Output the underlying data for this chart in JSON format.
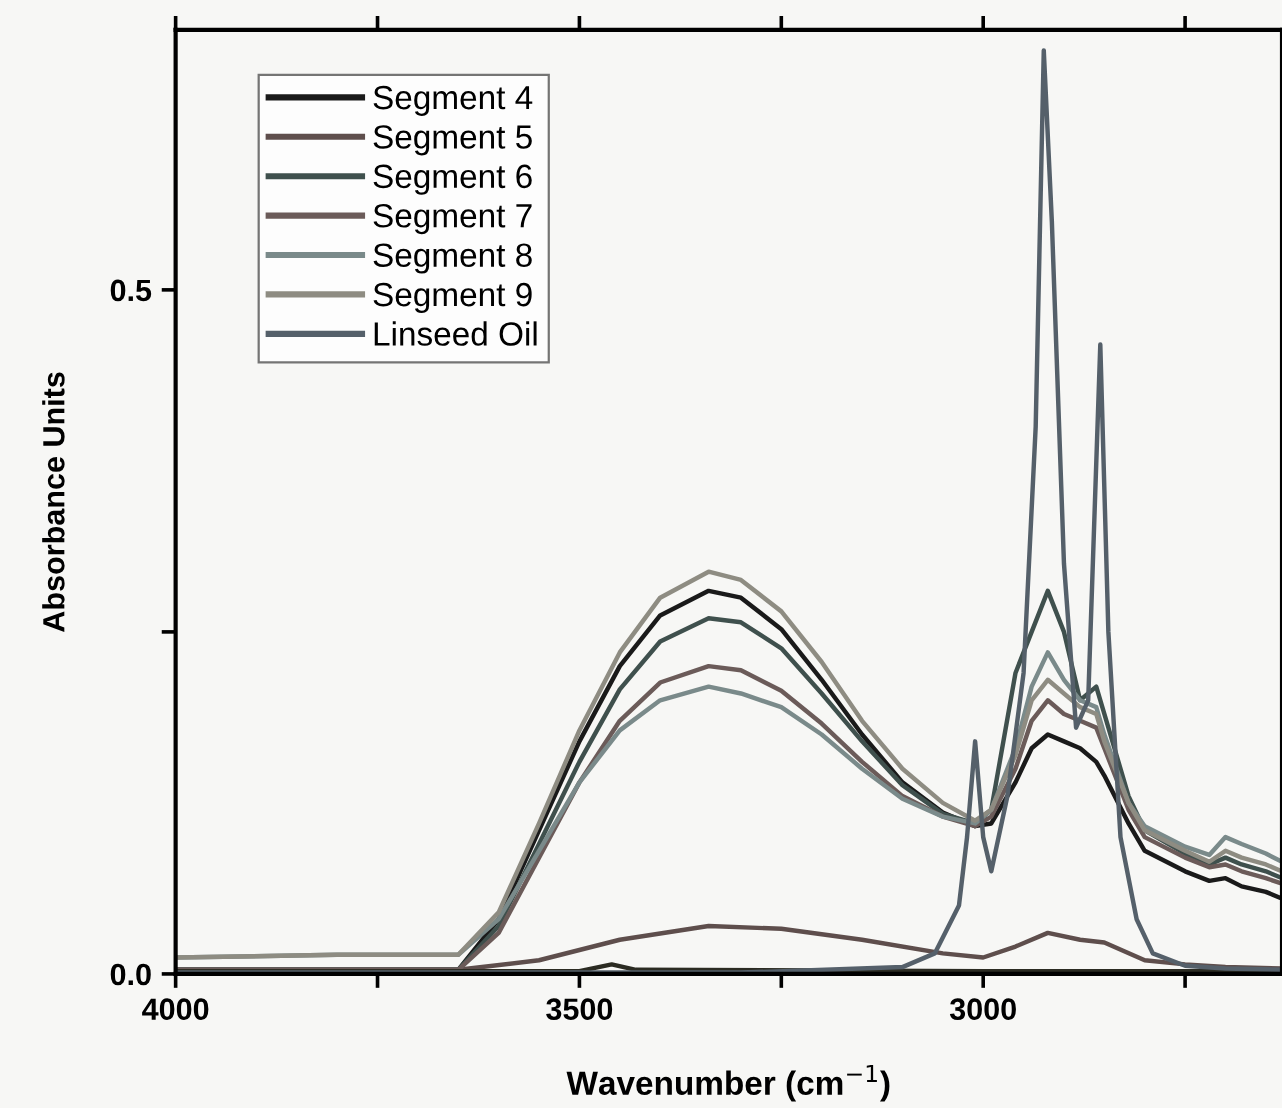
{
  "chart_data": {
    "type": "line",
    "xlabel": "Wavenumber (cm$^{−1}$)",
    "ylabel": "Absorbance Units",
    "xlim": [
      4000,
      2630
    ],
    "ylim": [
      0,
      0.69
    ],
    "xticks": [
      4000,
      {
        "value": 3750,
        "label": null
      },
      3500,
      {
        "value": 3250,
        "label": null
      },
      3000,
      {
        "value": 2750,
        "label": null
      }
    ],
    "yticks": [
      {
        "value": 0,
        "label": "0.0"
      },
      {
        "value": 0.25,
        "label": null
      },
      0.5
    ],
    "grid": false,
    "legend": "top left",
    "marker": "none",
    "line_style": "solid",
    "series": [
      {
        "name": "Segment 4",
        "color": "#1a1a1a",
        "x": [
          4000,
          3800,
          3650,
          3600,
          3550,
          3500,
          3450,
          3400,
          3340,
          3300,
          3250,
          3200,
          3150,
          3100,
          3050,
          3010,
          2990,
          2960,
          2940,
          2920,
          2900,
          2880,
          2860,
          2850,
          2820,
          2800,
          2750,
          2720,
          2700,
          2680,
          2650,
          2630
        ],
        "values": [
          0.003,
          0.003,
          0.003,
          0.04,
          0.105,
          0.17,
          0.225,
          0.262,
          0.28,
          0.275,
          0.252,
          0.215,
          0.175,
          0.14,
          0.118,
          0.108,
          0.11,
          0.14,
          0.165,
          0.175,
          0.17,
          0.165,
          0.155,
          0.145,
          0.11,
          0.09,
          0.075,
          0.068,
          0.07,
          0.064,
          0.06,
          0.055
        ]
      },
      {
        "name": "Segment 5",
        "color": "#5e4e4c",
        "x": [
          4000,
          3650,
          3550,
          3450,
          3340,
          3250,
          3150,
          3050,
          3000,
          2960,
          2920,
          2880,
          2850,
          2800,
          2750,
          2700,
          2630
        ],
        "values": [
          0.003,
          0.003,
          0.01,
          0.025,
          0.035,
          0.033,
          0.025,
          0.015,
          0.012,
          0.02,
          0.03,
          0.025,
          0.023,
          0.01,
          0.007,
          0.005,
          0.004
        ]
      },
      {
        "name": "Segment 6",
        "color": "#3f504d",
        "x": [
          4000,
          3800,
          3650,
          3600,
          3550,
          3500,
          3450,
          3400,
          3340,
          3300,
          3250,
          3200,
          3150,
          3100,
          3050,
          3010,
          2990,
          2960,
          2940,
          2920,
          2900,
          2880,
          2860,
          2850,
          2820,
          2800,
          2750,
          2720,
          2700,
          2680,
          2650,
          2630
        ],
        "values": [
          0.003,
          0.003,
          0.003,
          0.035,
          0.095,
          0.155,
          0.208,
          0.243,
          0.26,
          0.257,
          0.238,
          0.205,
          0.17,
          0.138,
          0.117,
          0.11,
          0.12,
          0.22,
          0.25,
          0.28,
          0.25,
          0.2,
          0.21,
          0.19,
          0.13,
          0.105,
          0.088,
          0.08,
          0.085,
          0.08,
          0.075,
          0.07
        ]
      },
      {
        "name": "Segment 7",
        "color": "#6b5b59",
        "x": [
          4000,
          3800,
          3650,
          3600,
          3550,
          3500,
          3450,
          3400,
          3340,
          3300,
          3250,
          3200,
          3150,
          3100,
          3050,
          3010,
          2990,
          2960,
          2940,
          2920,
          2900,
          2880,
          2860,
          2850,
          2820,
          2800,
          2750,
          2720,
          2700,
          2680,
          2650,
          2630
        ],
        "values": [
          0.003,
          0.003,
          0.003,
          0.03,
          0.085,
          0.14,
          0.185,
          0.213,
          0.225,
          0.222,
          0.207,
          0.183,
          0.155,
          0.13,
          0.115,
          0.108,
          0.115,
          0.15,
          0.185,
          0.2,
          0.19,
          0.185,
          0.18,
          0.165,
          0.12,
          0.1,
          0.085,
          0.078,
          0.08,
          0.075,
          0.07,
          0.066
        ]
      },
      {
        "name": "Segment 8",
        "color": "#7a8a8a",
        "x": [
          4000,
          3800,
          3650,
          3600,
          3550,
          3500,
          3450,
          3400,
          3340,
          3300,
          3250,
          3200,
          3150,
          3100,
          3050,
          3010,
          2990,
          2960,
          2940,
          2920,
          2900,
          2880,
          2860,
          2850,
          2820,
          2800,
          2750,
          2720,
          2700,
          2680,
          2650,
          2630
        ],
        "values": [
          0.012,
          0.014,
          0.014,
          0.04,
          0.09,
          0.14,
          0.178,
          0.2,
          0.21,
          0.205,
          0.195,
          0.175,
          0.15,
          0.128,
          0.115,
          0.11,
          0.12,
          0.165,
          0.21,
          0.235,
          0.215,
          0.2,
          0.195,
          0.175,
          0.125,
          0.108,
          0.093,
          0.087,
          0.1,
          0.095,
          0.088,
          0.082
        ]
      },
      {
        "name": "Segment 9",
        "color": "#8e8c82",
        "x": [
          4000,
          3800,
          3650,
          3600,
          3550,
          3500,
          3450,
          3400,
          3340,
          3300,
          3250,
          3200,
          3150,
          3100,
          3050,
          3010,
          2990,
          2960,
          2940,
          2920,
          2900,
          2880,
          2860,
          2850,
          2820,
          2800,
          2750,
          2720,
          2700,
          2680,
          2650,
          2630
        ],
        "values": [
          0.012,
          0.014,
          0.014,
          0.045,
          0.11,
          0.178,
          0.235,
          0.275,
          0.294,
          0.288,
          0.265,
          0.228,
          0.185,
          0.15,
          0.125,
          0.112,
          0.12,
          0.16,
          0.2,
          0.215,
          0.205,
          0.195,
          0.19,
          0.17,
          0.125,
          0.105,
          0.09,
          0.082,
          0.09,
          0.085,
          0.08,
          0.075
        ]
      },
      {
        "color": "#2b2b22",
        "x": [
          4000,
          3500,
          3460,
          3430,
          3000,
          2630
        ],
        "values": [
          0.002,
          0.002,
          0.007,
          0.003,
          0.002,
          0.002
        ]
      },
      {
        "name": "Linseed Oil",
        "color": "#55606a",
        "x": [
          4000,
          3300,
          3100,
          3060,
          3030,
          3020,
          3010,
          3000,
          2990,
          2970,
          2950,
          2935,
          2925,
          2915,
          2900,
          2885,
          2870,
          2855,
          2845,
          2830,
          2810,
          2790,
          2750,
          2700,
          2630
        ],
        "values": [
          0.001,
          0.001,
          0.005,
          0.015,
          0.05,
          0.1,
          0.17,
          0.1,
          0.075,
          0.13,
          0.22,
          0.4,
          0.675,
          0.55,
          0.3,
          0.18,
          0.2,
          0.46,
          0.25,
          0.1,
          0.04,
          0.015,
          0.006,
          0.004,
          0.003
        ]
      }
    ]
  }
}
